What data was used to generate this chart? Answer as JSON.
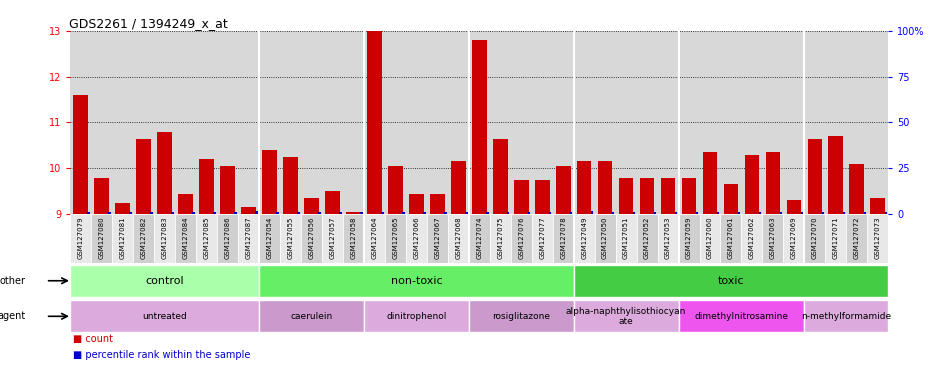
{
  "title": "GDS2261 / 1394249_x_at",
  "samples": [
    "GSM127079",
    "GSM127080",
    "GSM127081",
    "GSM127082",
    "GSM127083",
    "GSM127084",
    "GSM127085",
    "GSM127086",
    "GSM127087",
    "GSM127054",
    "GSM127055",
    "GSM127056",
    "GSM127057",
    "GSM127058",
    "GSM127064",
    "GSM127065",
    "GSM127066",
    "GSM127067",
    "GSM127068",
    "GSM127074",
    "GSM127075",
    "GSM127076",
    "GSM127077",
    "GSM127078",
    "GSM127049",
    "GSM127050",
    "GSM127051",
    "GSM127052",
    "GSM127053",
    "GSM127059",
    "GSM127060",
    "GSM127061",
    "GSM127062",
    "GSM127063",
    "GSM127069",
    "GSM127070",
    "GSM127071",
    "GSM127072",
    "GSM127073"
  ],
  "counts": [
    11.6,
    9.8,
    9.25,
    10.65,
    10.8,
    9.45,
    10.2,
    10.05,
    9.15,
    10.4,
    10.25,
    9.35,
    9.5,
    9.05,
    13.0,
    10.05,
    9.45,
    9.45,
    10.15,
    12.8,
    10.65,
    9.75,
    9.75,
    10.05,
    10.15,
    10.15,
    9.8,
    9.8,
    9.8,
    9.8,
    10.35,
    9.65,
    10.3,
    10.35,
    9.3,
    10.65,
    10.7,
    10.1,
    9.35
  ],
  "percentile_ranks": [
    0,
    0,
    0,
    0,
    0,
    0,
    0,
    0,
    2,
    0,
    0,
    0,
    0,
    0,
    0,
    0,
    0,
    0,
    0,
    0,
    0,
    0,
    0,
    0,
    2,
    0,
    0,
    0,
    0,
    0,
    0,
    0,
    0,
    0,
    0,
    0,
    0,
    0,
    0
  ],
  "ylim_left": [
    9,
    13
  ],
  "yticks_left": [
    9,
    10,
    11,
    12,
    13
  ],
  "ylim_right": [
    0,
    100
  ],
  "yticks_right": [
    0,
    25,
    50,
    75,
    100
  ],
  "ytick_right_labels": [
    "0",
    "25",
    "50",
    "75",
    "100%"
  ],
  "bar_color_red": "#cc0000",
  "bar_color_blue": "#0000cc",
  "bg_color": "#d8d8d8",
  "cell_bg_light": "#e0e0e0",
  "cell_bg_dark": "#c8c8c8",
  "other_groups": [
    {
      "label": "control",
      "start": 0,
      "end": 9,
      "color": "#aaffaa"
    },
    {
      "label": "non-toxic",
      "start": 9,
      "end": 24,
      "color": "#66ee66"
    },
    {
      "label": "toxic",
      "start": 24,
      "end": 39,
      "color": "#44cc44"
    }
  ],
  "agent_groups": [
    {
      "label": "untreated",
      "start": 0,
      "end": 9,
      "color": "#ddaadd"
    },
    {
      "label": "caerulein",
      "start": 9,
      "end": 14,
      "color": "#cc99cc"
    },
    {
      "label": "dinitrophenol",
      "start": 14,
      "end": 19,
      "color": "#ddaadd"
    },
    {
      "label": "rosiglitazone",
      "start": 19,
      "end": 24,
      "color": "#cc99cc"
    },
    {
      "label": "alpha-naphthylisothiocyan\nate",
      "start": 24,
      "end": 29,
      "color": "#ddaadd"
    },
    {
      "label": "dimethylnitrosamine",
      "start": 29,
      "end": 35,
      "color": "#ee55ee"
    },
    {
      "label": "n-methylformamide",
      "start": 35,
      "end": 39,
      "color": "#ddaadd"
    }
  ],
  "group_dividers": [
    9,
    14,
    19,
    24,
    29,
    35
  ],
  "legend_count_color": "#cc0000",
  "legend_percentile_color": "#0000cc",
  "title_fontsize": 9,
  "tick_fontsize": 7,
  "label_fontsize": 8
}
